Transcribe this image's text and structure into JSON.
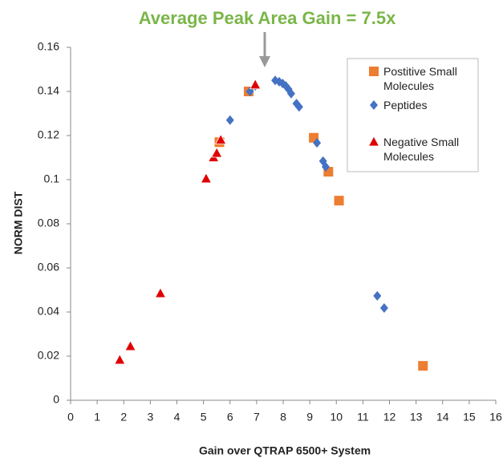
{
  "chart_data": {
    "type": "scatter",
    "title": "Average Peak Area Gain = 7.5x",
    "x_label": "Gain over QTRAP 6500+ System",
    "y_label": "NORM DIST",
    "xlim": [
      0,
      16
    ],
    "xticks": [
      0,
      1,
      2,
      3,
      4,
      5,
      6,
      7,
      8,
      9,
      10,
      11,
      12,
      13,
      14,
      15,
      16
    ],
    "ylim": [
      0,
      0.16
    ],
    "yticks": [
      0,
      0.02,
      0.04,
      0.06,
      0.08,
      0.1,
      0.12,
      0.14,
      0.16
    ],
    "series": [
      {
        "name": "Postitive Small Molecules",
        "color": "#ed7d31",
        "marker": "square",
        "x": [
          6.7,
          5.6,
          9.15,
          9.7,
          10.1,
          13.26
        ],
        "values": [
          0.14,
          0.117,
          0.119,
          0.1036,
          0.0905,
          0.0156
        ]
      },
      {
        "name": "Peptides",
        "color": "#4472c4",
        "marker": "diamond",
        "x": [
          6.0,
          6.75,
          6.95,
          7.7,
          7.85,
          7.98,
          8.1,
          8.2,
          8.3,
          8.5,
          8.6,
          9.27,
          9.5,
          9.6,
          11.54,
          11.8
        ],
        "values": [
          0.127,
          0.14,
          0.1425,
          0.145,
          0.1444,
          0.1436,
          0.1425,
          0.141,
          0.139,
          0.1345,
          0.133,
          0.1167,
          0.1084,
          0.1058,
          0.0473,
          0.0418
        ]
      },
      {
        "name": "Negative Small Molecules",
        "color": "#e00000",
        "marker": "triangle",
        "x": [
          1.85,
          2.25,
          3.38,
          5.1,
          5.38,
          5.5,
          5.65,
          6.95
        ],
        "values": [
          0.0182,
          0.0244,
          0.0484,
          0.1004,
          0.11,
          0.112,
          0.118,
          0.143
        ]
      }
    ]
  }
}
